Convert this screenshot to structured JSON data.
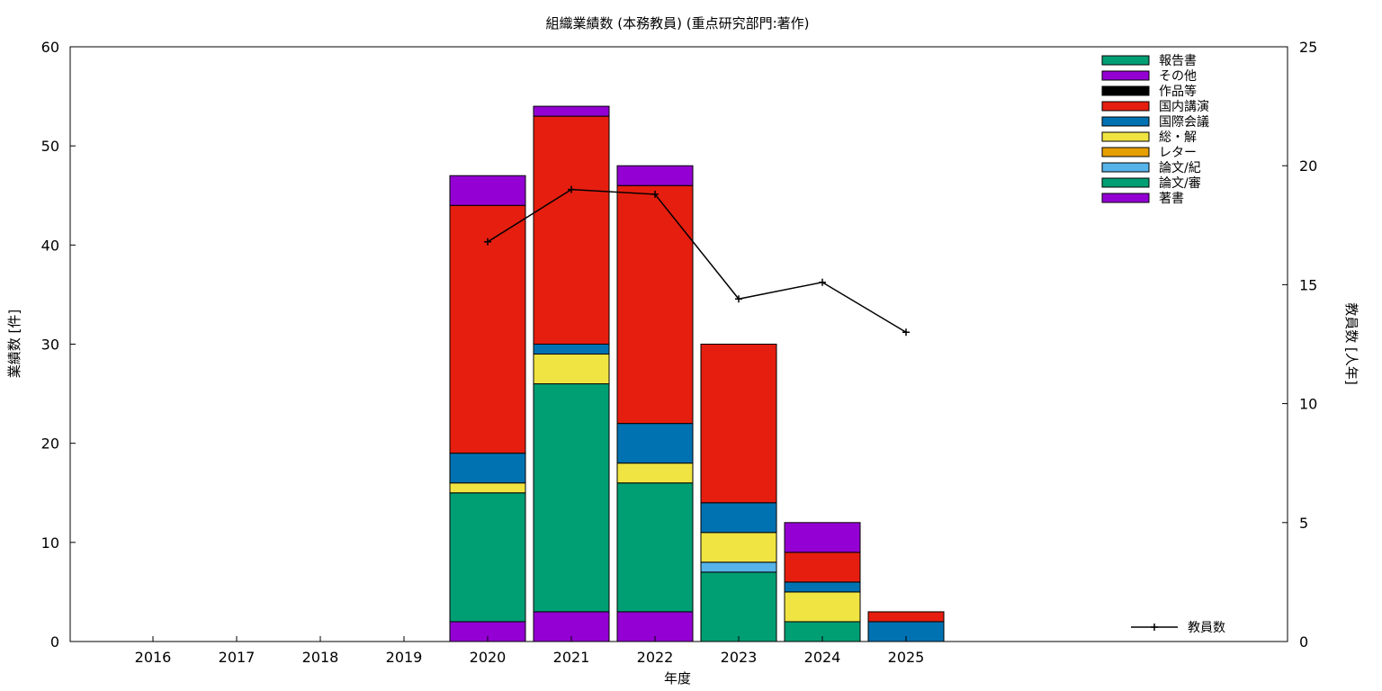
{
  "chart_data": {
    "type": "bar",
    "stacked": true,
    "title": "組織業績数 (本務教員) (重点研究部門:著作)",
    "xlabel": "年度",
    "ylabel": "業績数 [件]",
    "y2label": "教員数 [人年]",
    "ylim": [
      0,
      60
    ],
    "y2lim": [
      0,
      25
    ],
    "yticks": [
      "0",
      "10",
      "20",
      "30",
      "40",
      "50",
      "60"
    ],
    "y2ticks": [
      "0",
      "5",
      "10",
      "15",
      "20",
      "25"
    ],
    "grid": false,
    "legend_position": "top-right",
    "categories": [
      "2016",
      "2017",
      "2018",
      "2019",
      "2020",
      "2021",
      "2022",
      "2023",
      "2024",
      "2025"
    ],
    "series": [
      {
        "name": "著書",
        "color": "#9400d3",
        "values": [
          0,
          0,
          0,
          0,
          2,
          3,
          3,
          0,
          0,
          0
        ]
      },
      {
        "name": "論文/審",
        "color": "#009e73",
        "values": [
          0,
          0,
          0,
          0,
          13,
          23,
          13,
          7,
          2,
          0
        ]
      },
      {
        "name": "論文/紀",
        "color": "#56b4e9",
        "values": [
          0,
          0,
          0,
          0,
          0,
          0,
          0,
          1,
          0,
          0
        ]
      },
      {
        "name": "レター",
        "color": "#e69f00",
        "values": [
          0,
          0,
          0,
          0,
          0,
          0,
          0,
          0,
          0,
          0
        ]
      },
      {
        "name": "総・解",
        "color": "#f0e442",
        "values": [
          0,
          0,
          0,
          0,
          1,
          3,
          2,
          3,
          3,
          0
        ]
      },
      {
        "name": "国際会議",
        "color": "#0072b2",
        "values": [
          0,
          0,
          0,
          0,
          3,
          1,
          4,
          3,
          1,
          2
        ]
      },
      {
        "name": "国内講演",
        "color": "#e51e10",
        "values": [
          0,
          0,
          0,
          0,
          25,
          23,
          24,
          16,
          3,
          1
        ]
      },
      {
        "name": "作品等",
        "color": "#000000",
        "values": [
          0,
          0,
          0,
          0,
          0,
          0,
          0,
          0,
          0,
          0
        ]
      },
      {
        "name": "その他",
        "color": "#9400d3",
        "values": [
          0,
          0,
          0,
          0,
          3,
          1,
          2,
          0,
          3,
          0
        ]
      },
      {
        "name": "報告書",
        "color": "#009e73",
        "values": [
          0,
          0,
          0,
          0,
          0,
          0,
          0,
          0,
          0,
          0
        ]
      }
    ],
    "line_series": {
      "name": "教員数",
      "axis": "y2",
      "color": "#000000",
      "x": [
        "2020",
        "2021",
        "2022",
        "2023",
        "2024",
        "2025"
      ],
      "values": [
        16.8,
        19.0,
        18.8,
        14.4,
        15.1,
        13.0
      ]
    }
  }
}
